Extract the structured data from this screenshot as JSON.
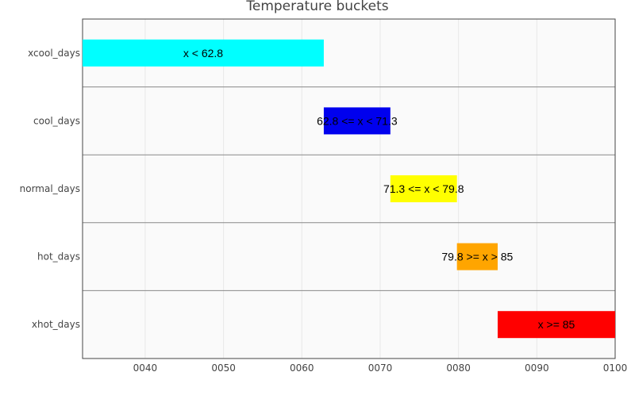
{
  "chart_data": {
    "type": "bar",
    "orientation": "horizontal",
    "title": "Temperature buckets",
    "xlabel": "",
    "ylabel": "",
    "xlim": [
      32,
      100
    ],
    "x_ticks": [
      40,
      50,
      60,
      70,
      80,
      90,
      100
    ],
    "x_tick_labels": [
      "0040",
      "0050",
      "0060",
      "0070",
      "0080",
      "0090",
      "0100"
    ],
    "grid": true,
    "categories": [
      "xcool_days",
      "cool_days",
      "normal_days",
      "hot_days",
      "xhot_days"
    ],
    "ranges": [
      {
        "category": "xcool_days",
        "start": 32,
        "end": 62.8,
        "label": "x < 62.8",
        "color": "#00ffff"
      },
      {
        "category": "cool_days",
        "start": 62.8,
        "end": 71.3,
        "label": "62.8 <= x < 71.3",
        "color": "#0000ee"
      },
      {
        "category": "normal_days",
        "start": 71.3,
        "end": 79.8,
        "label": "71.3 <= x < 79.8",
        "color": "#ffff00"
      },
      {
        "category": "hot_days",
        "start": 79.8,
        "end": 85,
        "label": "79.8 >= x > 85",
        "color": "#ffa500"
      },
      {
        "category": "xhot_days",
        "start": 85,
        "end": 100,
        "label": "x >= 85",
        "color": "#ff0000"
      }
    ]
  }
}
